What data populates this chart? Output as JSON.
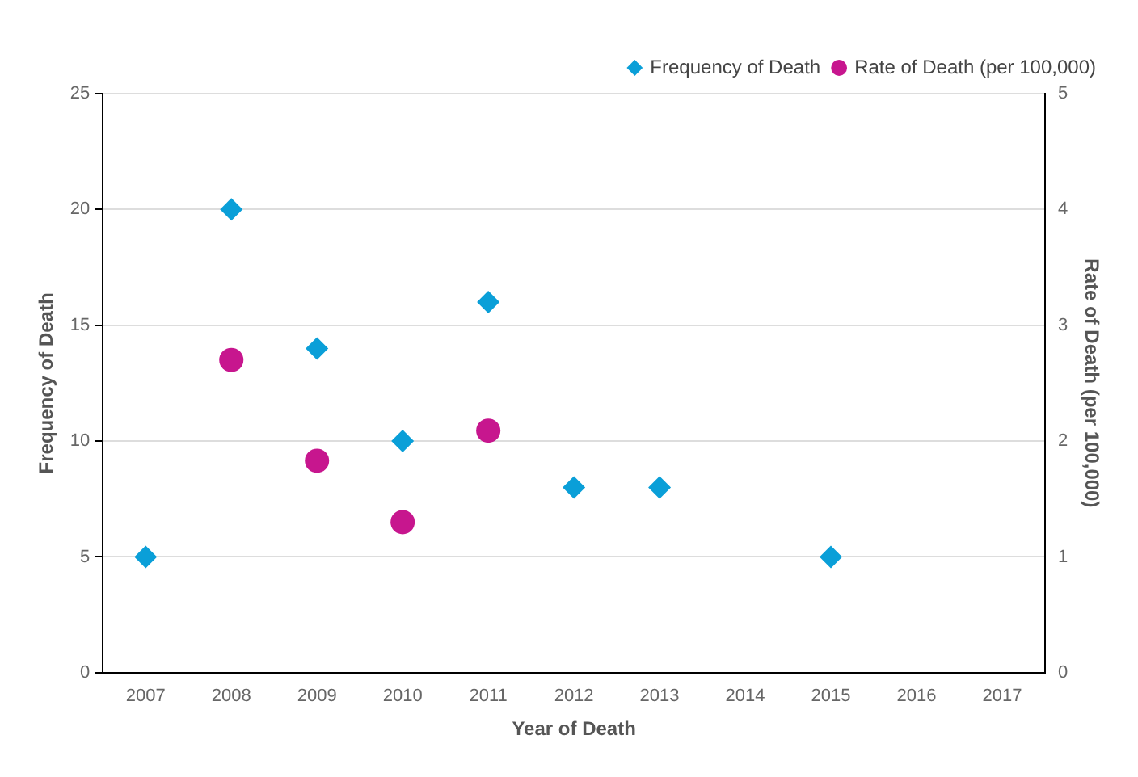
{
  "chart_data": {
    "type": "scatter",
    "xlabel": "Year of Death",
    "ylabel": "Frequency of Death",
    "y2label": "Rate of Death (per 100,000)",
    "categories": [
      "2007",
      "2008",
      "2009",
      "2010",
      "2011",
      "2012",
      "2013",
      "2014",
      "2015",
      "2016",
      "2017"
    ],
    "series": [
      {
        "name": "Frequency of Death",
        "color": "#0a9fd8",
        "marker": "diamond",
        "values": [
          5,
          20,
          14,
          10,
          16,
          8,
          8,
          null,
          5,
          null,
          null
        ]
      },
      {
        "name": "Rate of Death (per 100,000)",
        "color": "#c7168e",
        "marker": "circle",
        "axis": "y2",
        "values": [
          null,
          2.7,
          1.83,
          1.3,
          2.09,
          null,
          null,
          null,
          null,
          null,
          null
        ]
      }
    ],
    "ylim": [
      0,
      25
    ],
    "yticks": [
      0,
      5,
      10,
      15,
      20,
      25
    ],
    "y2lim": [
      0,
      5
    ],
    "y2ticks": [
      0,
      1,
      2,
      3,
      4,
      5
    ],
    "grid": "y",
    "legend": "top right"
  }
}
